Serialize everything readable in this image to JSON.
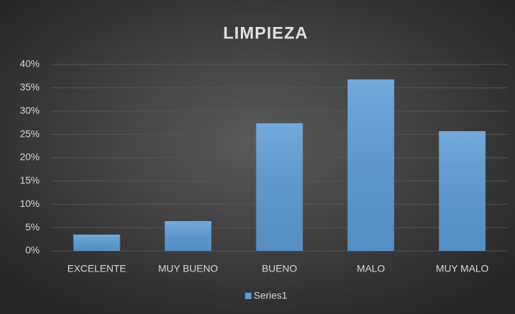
{
  "chart_data": {
    "type": "bar",
    "title": "LIMPIEZA",
    "categories": [
      "EXCELENTE",
      "MUY BUENO",
      "BUENO",
      "MALO",
      "MUY MALO"
    ],
    "series": [
      {
        "name": "Series1",
        "color": "#5b9bd5",
        "values": [
          3.5,
          6.4,
          27.4,
          36.8,
          25.7
        ]
      }
    ],
    "ylim": [
      0,
      40
    ],
    "yticks": [
      {
        "value": 0,
        "label": "0%"
      },
      {
        "value": 5,
        "label": "5%"
      },
      {
        "value": 10,
        "label": "10%"
      },
      {
        "value": 15,
        "label": "15%"
      },
      {
        "value": 20,
        "label": "20%"
      },
      {
        "value": 25,
        "label": "25%"
      },
      {
        "value": 30,
        "label": "30%"
      },
      {
        "value": 35,
        "label": "35%"
      },
      {
        "value": 40,
        "label": "40%"
      }
    ],
    "grid": true,
    "legend": "bottom"
  }
}
